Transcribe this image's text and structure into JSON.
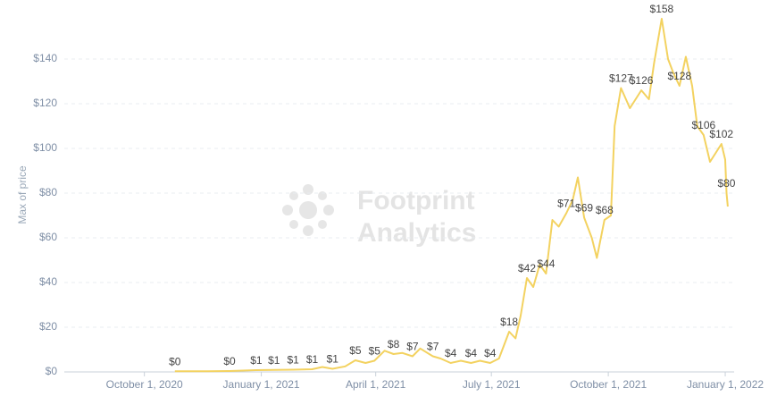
{
  "chart_data": {
    "type": "line",
    "y_label": "Max of price",
    "watermark": [
      "Footprint",
      "Analytics"
    ],
    "xlim": [
      "2020-07-30",
      "2022-01-08"
    ],
    "xticks": [
      {
        "value": "2020-10-01",
        "label": "October 1, 2020"
      },
      {
        "value": "2021-01-01",
        "label": "January 1, 2021"
      },
      {
        "value": "2021-04-01",
        "label": "April 1, 2021"
      },
      {
        "value": "2021-07-01",
        "label": "July 1, 2021"
      },
      {
        "value": "2021-10-01",
        "label": "October 1, 2021"
      },
      {
        "value": "2022-01-01",
        "label": "January 1, 2022"
      }
    ],
    "ylim": [
      0,
      160
    ],
    "yticks": [
      {
        "value": 0,
        "label": "$0"
      },
      {
        "value": 20,
        "label": "$20"
      },
      {
        "value": 40,
        "label": "$40"
      },
      {
        "value": 60,
        "label": "$60"
      },
      {
        "value": 80,
        "label": "$80"
      },
      {
        "value": 100,
        "label": "$100"
      },
      {
        "value": 120,
        "label": "$120"
      },
      {
        "value": 140,
        "label": "$140"
      }
    ],
    "grid": true,
    "x": [
      "2020-10-25",
      "2020-11-20",
      "2020-12-07",
      "2020-12-28",
      "2021-01-11",
      "2021-01-26",
      "2021-02-10",
      "2021-02-18",
      "2021-02-26",
      "2021-03-08",
      "2021-03-16",
      "2021-03-24",
      "2021-03-31",
      "2021-04-08",
      "2021-04-15",
      "2021-04-22",
      "2021-04-30",
      "2021-05-06",
      "2021-05-16",
      "2021-05-22",
      "2021-05-30",
      "2021-06-07",
      "2021-06-15",
      "2021-06-22",
      "2021-06-30",
      "2021-07-07",
      "2021-07-15",
      "2021-07-20",
      "2021-07-24",
      "2021-07-29",
      "2021-08-03",
      "2021-08-08",
      "2021-08-13",
      "2021-08-18",
      "2021-08-23",
      "2021-08-29",
      "2021-09-03",
      "2021-09-07",
      "2021-09-12",
      "2021-09-18",
      "2021-09-22",
      "2021-09-28",
      "2021-10-03",
      "2021-10-06",
      "2021-10-11",
      "2021-10-18",
      "2021-10-27",
      "2021-11-02",
      "2021-11-06",
      "2021-11-12",
      "2021-11-17",
      "2021-11-21",
      "2021-11-26",
      "2021-12-01",
      "2021-12-06",
      "2021-12-10",
      "2021-12-15",
      "2021-12-20",
      "2021-12-29",
      "2022-01-01",
      "2022-01-02",
      "2022-01-03"
    ],
    "series": [
      {
        "name": "Max of price",
        "color": "#f3d260",
        "values": [
          0.3,
          0.3,
          0.4,
          0.8,
          0.9,
          1.0,
          1.2,
          2.2,
          1.4,
          2.5,
          5.2,
          4.0,
          5.0,
          9.5,
          8.0,
          8.5,
          7.0,
          10.5,
          7.0,
          6.0,
          4.0,
          5.0,
          4.0,
          5.0,
          4.0,
          6.0,
          18,
          15,
          25,
          42,
          38,
          48,
          44,
          68,
          65,
          71,
          77,
          87,
          69,
          60,
          51,
          68,
          70,
          110,
          127,
          118,
          126,
          122,
          138,
          158,
          140,
          134,
          128,
          141,
          128,
          110,
          106,
          94,
          102,
          95,
          80,
          74
        ],
        "value_labels": [
          "$0",
          null,
          "$0",
          "$1",
          "$1",
          "$1",
          "$1",
          null,
          "$1",
          null,
          "$5",
          null,
          "$5",
          null,
          "$8",
          null,
          "$7",
          null,
          "$7",
          null,
          "$4",
          null,
          "$4",
          null,
          "$4",
          null,
          "$18",
          null,
          null,
          "$42",
          null,
          null,
          "$44",
          null,
          null,
          "$71",
          null,
          null,
          "$69",
          null,
          null,
          "$68",
          null,
          null,
          "$127",
          null,
          "$126",
          null,
          null,
          "$158",
          null,
          null,
          "$128",
          null,
          null,
          null,
          "$106",
          null,
          "$102",
          null,
          "$80",
          null
        ]
      }
    ]
  }
}
